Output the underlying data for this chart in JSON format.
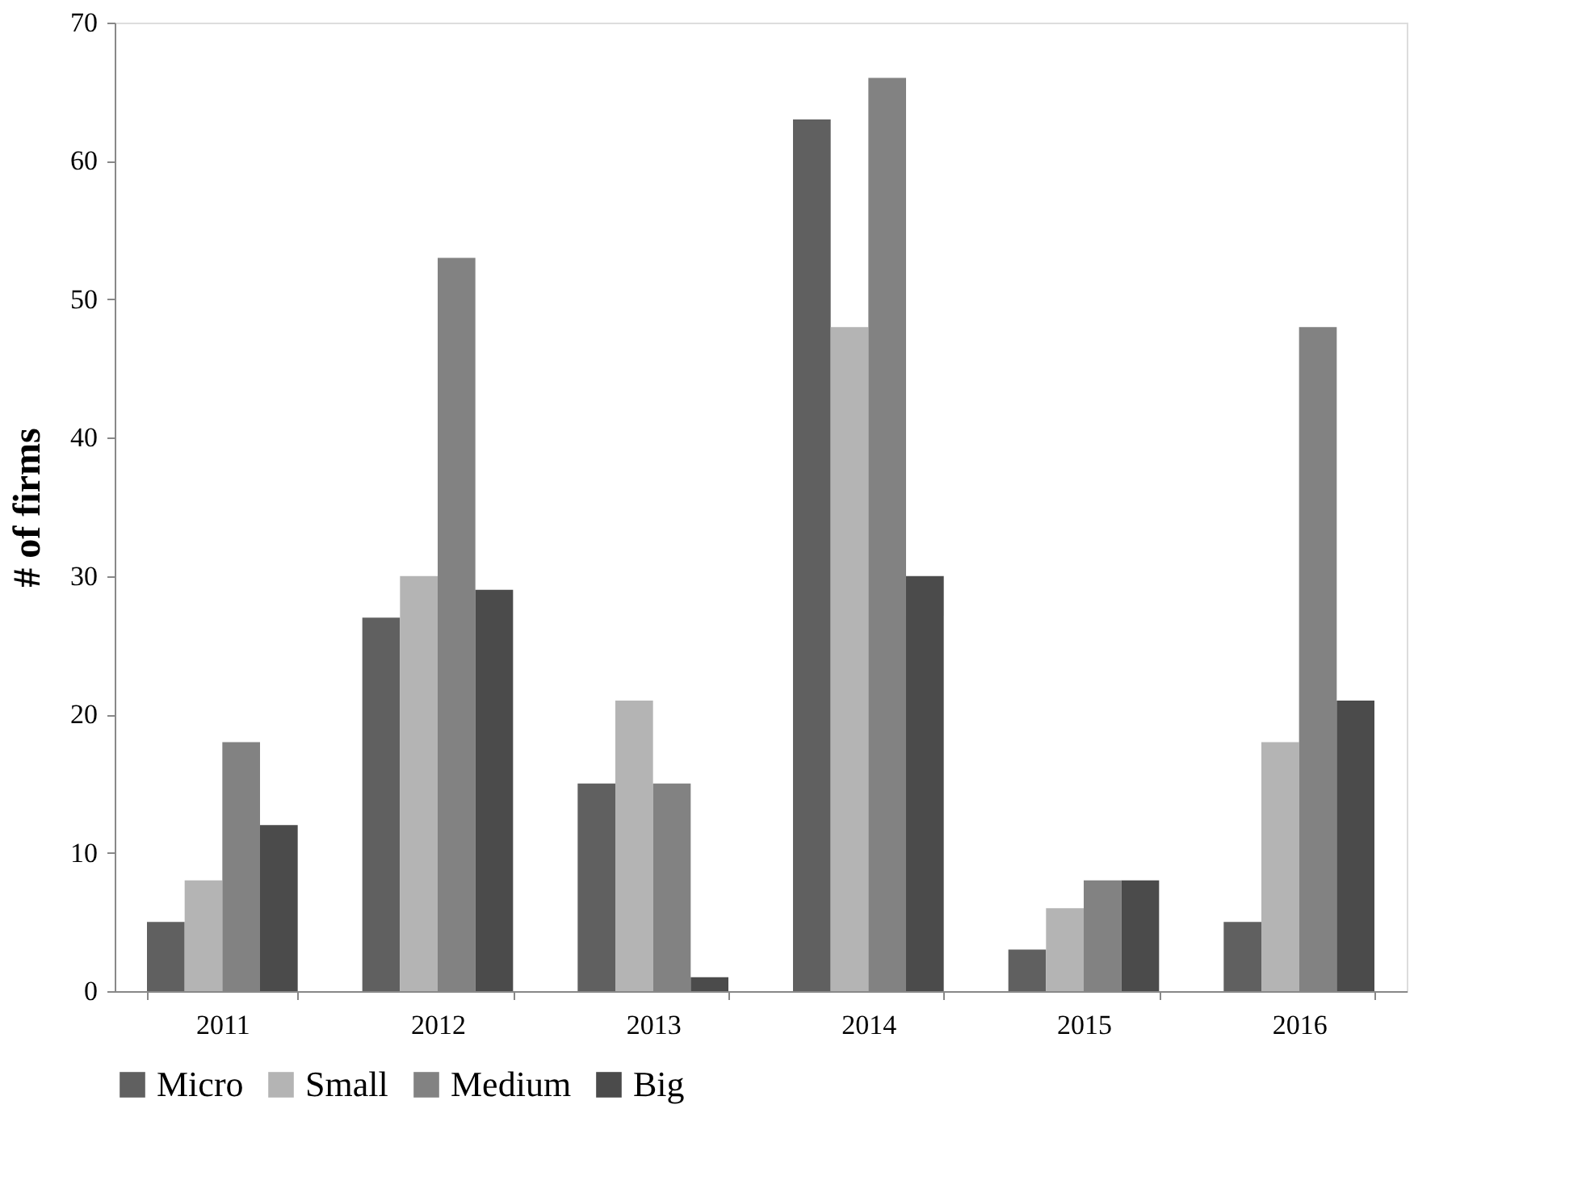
{
  "chart_data": {
    "type": "bar",
    "ylabel": "# of firms",
    "categories": [
      "2011",
      "2012",
      "2013",
      "2014",
      "2015",
      "2016"
    ],
    "series": [
      {
        "name": "Micro",
        "color": "#606060",
        "values": [
          5,
          27,
          15,
          63,
          3,
          5
        ]
      },
      {
        "name": "Small",
        "color": "#b4b4b4",
        "values": [
          8,
          30,
          21,
          48,
          6,
          18
        ]
      },
      {
        "name": "Medium",
        "color": "#828282",
        "values": [
          18,
          53,
          15,
          66,
          8,
          48
        ]
      },
      {
        "name": "Big",
        "color": "#4b4b4b",
        "values": [
          12,
          29,
          1,
          30,
          8,
          21
        ]
      }
    ],
    "ylim": [
      0,
      70
    ],
    "yticks": [
      0,
      10,
      20,
      30,
      40,
      50,
      60,
      70
    ],
    "grid": false,
    "legend": "bottom"
  }
}
